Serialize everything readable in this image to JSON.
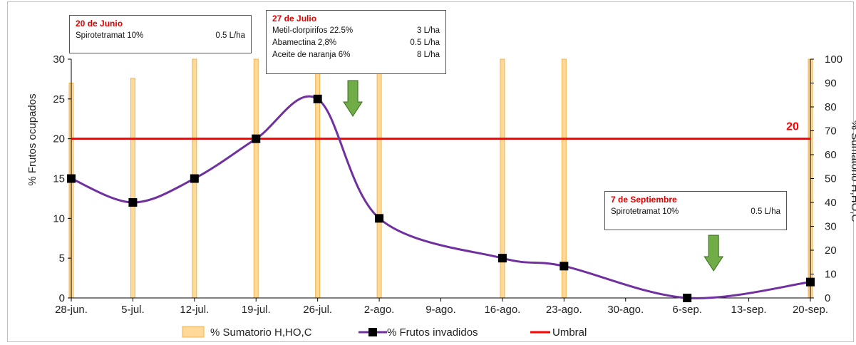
{
  "chart_data": {
    "type": "bar+line",
    "categories": [
      "28-jun.",
      "5-jul.",
      "12-jul.",
      "19-jul.",
      "26-jul.",
      "2-ago.",
      "9-ago.",
      "16-ago.",
      "23-ago.",
      "30-ago.",
      "6-sep.",
      "13-sep.",
      "20-sep."
    ],
    "ylabel": "% Frutos ocupados",
    "y2label": "% Sumatorio H,HO,C",
    "ylim": [
      0,
      30
    ],
    "y2lim": [
      0,
      100
    ],
    "yticks": [
      "0",
      "5",
      "10",
      "15",
      "20",
      "25",
      "30"
    ],
    "y2ticks": [
      "0",
      "10",
      "20",
      "30",
      "40",
      "50",
      "60",
      "70",
      "80",
      "90",
      "100"
    ],
    "series": [
      {
        "name": "% Sumatorio H,HO,C",
        "kind": "bar",
        "axis": "right",
        "color": "#ffd999",
        "edge": "#f2b44a",
        "points": [
          {
            "x": "28-jun.",
            "y": 90
          },
          {
            "x": "5-jul.",
            "y": 92
          },
          {
            "x": "12-jul.",
            "y": 100
          },
          {
            "x": "19-jul.",
            "y": 100
          },
          {
            "x": "26-jul.",
            "y": 100
          },
          {
            "x": "2-ago.",
            "y": 100
          },
          {
            "x": "16-ago.",
            "y": 100
          },
          {
            "x": "23-ago.",
            "y": 100
          },
          {
            "x": "20-sep.",
            "y": 100
          }
        ]
      },
      {
        "name": "% Frutos invadidos",
        "kind": "line",
        "axis": "left",
        "color": "#7030a0",
        "marker_color": "#000000",
        "points": [
          {
            "x": "28-jun.",
            "y": 15
          },
          {
            "x": "5-jul.",
            "y": 12
          },
          {
            "x": "12-jul.",
            "y": 15
          },
          {
            "x": "19-jul.",
            "y": 20
          },
          {
            "x": "26-jul.",
            "y": 25
          },
          {
            "x": "2-ago.",
            "y": 10
          },
          {
            "x": "16-ago.",
            "y": 5
          },
          {
            "x": "23-ago.",
            "y": 4
          },
          {
            "x": "6-sep.",
            "y": 0
          },
          {
            "x": "20-sep.",
            "y": 2
          }
        ]
      },
      {
        "name": "Umbral",
        "kind": "hline",
        "axis": "left",
        "color": "#ff0000",
        "value": 20,
        "label": "20"
      }
    ],
    "annotations": [
      {
        "title": "20 de Junio",
        "rows": [
          {
            "product": "Spirotetramat 10%",
            "dose": "0.5 L/ha"
          }
        ]
      },
      {
        "title": "27 de Julio",
        "rows": [
          {
            "product": "Metil-clorpirifos 22.5%",
            "dose": "3 L/ha"
          },
          {
            "product": "Abamectina 2,8%",
            "dose": "0.5 L/ha"
          },
          {
            "product": "Aceite de naranja 6%",
            "dose": "8 L/ha"
          }
        ]
      },
      {
        "title": "7 de Septiembre",
        "rows": [
          {
            "product": "Spirotetramat 10%",
            "dose": "0.5 L/ha"
          }
        ]
      }
    ],
    "arrows": [
      {
        "x": "26-jul.",
        "offset_days": 4,
        "color": "#70ad47"
      },
      {
        "x": "6-sep.",
        "offset_days": 3,
        "color": "#70ad47"
      }
    ],
    "legend": "bottom"
  }
}
